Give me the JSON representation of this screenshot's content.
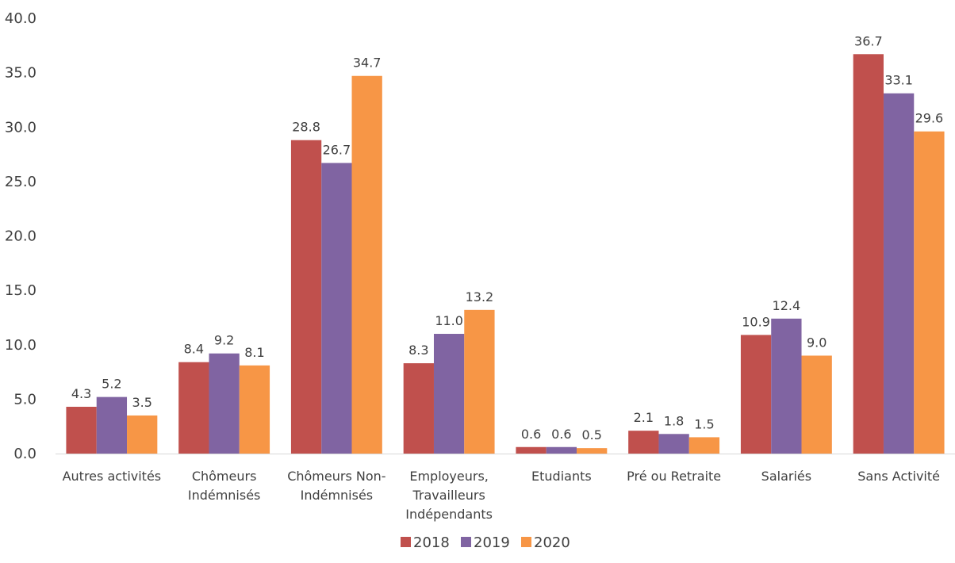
{
  "chart_data": {
    "type": "bar",
    "title": "",
    "xlabel": "",
    "ylabel": "",
    "categories": [
      "Autres activités",
      "Chômeurs Indémnisés",
      "Chômeurs Non-Indémnisés",
      "Employeurs, Travailleurs Indépendants",
      "Etudiants",
      "Pré ou Retraite",
      "Salariés",
      "Sans Activité"
    ],
    "category_lines": [
      [
        "Autres activités"
      ],
      [
        "Chômeurs",
        "Indémnisés"
      ],
      [
        "Chômeurs Non-",
        "Indémnisés"
      ],
      [
        "Employeurs,",
        "Travailleurs",
        "Indépendants"
      ],
      [
        "Etudiants"
      ],
      [
        "Pré ou Retraite"
      ],
      [
        "Salariés"
      ],
      [
        "Sans Activité"
      ]
    ],
    "series": [
      {
        "name": "2018",
        "color": "#c0504d",
        "values": [
          4.3,
          8.4,
          28.8,
          8.3,
          0.6,
          2.1,
          10.9,
          36.7
        ]
      },
      {
        "name": "2019",
        "color": "#8064a2",
        "values": [
          5.2,
          9.2,
          26.7,
          11.0,
          0.6,
          1.8,
          12.4,
          33.1
        ]
      },
      {
        "name": "2020",
        "color": "#f79646",
        "values": [
          3.5,
          8.1,
          34.7,
          13.2,
          0.5,
          1.5,
          9.0,
          29.6
        ]
      }
    ],
    "ylim": [
      0,
      40
    ],
    "yticks": [
      "0.0",
      "5.0",
      "10.0",
      "15.0",
      "20.0",
      "25.0",
      "30.0",
      "35.0",
      "40.0"
    ],
    "grid": false,
    "legend_position": "bottom",
    "data_labels": true
  }
}
